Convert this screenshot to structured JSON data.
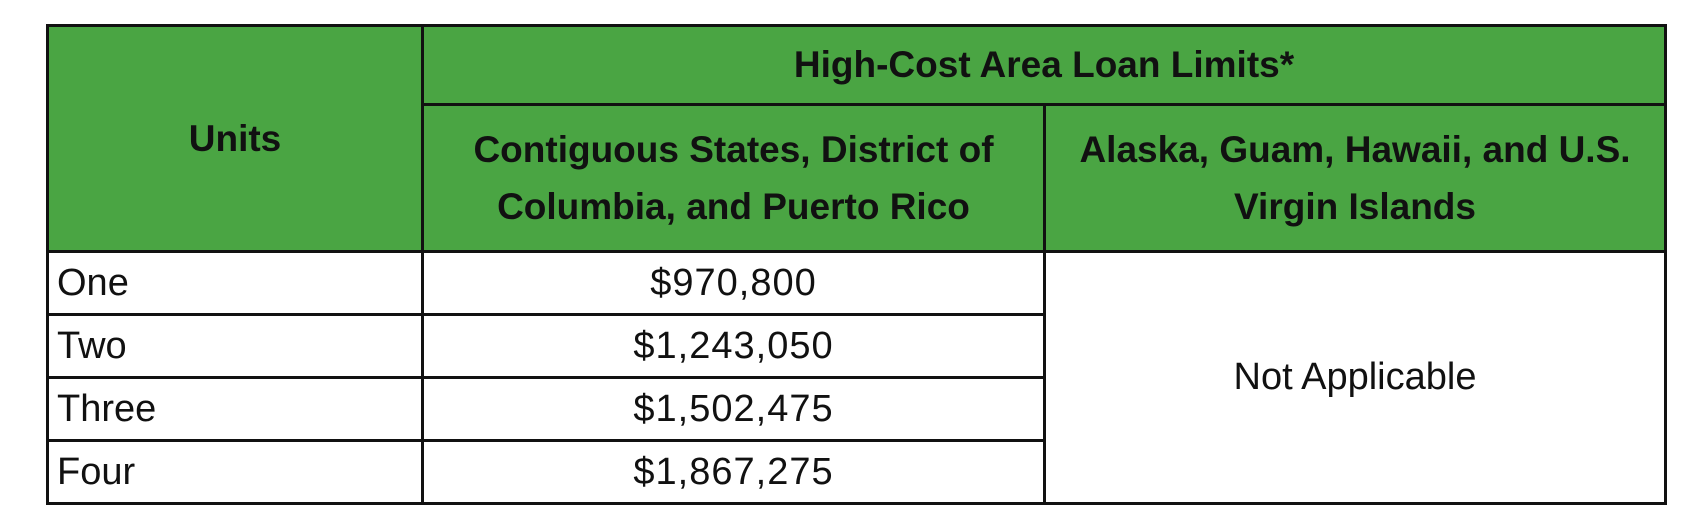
{
  "table": {
    "header": {
      "units": "Units",
      "group": "High-Cost Area Loan Limits*",
      "columns": [
        "Contiguous States, District of Columbia, and Puerto Rico",
        "Alaska, Guam, Hawaii, and U.S. Virgin Islands"
      ]
    },
    "rows": [
      [
        "One",
        "$970,800"
      ],
      [
        "Two",
        "$1,243,050"
      ],
      [
        "Three",
        "$1,502,475"
      ],
      [
        "Four",
        "$1,867,275"
      ]
    ],
    "merged_cell": "Not Applicable"
  }
}
